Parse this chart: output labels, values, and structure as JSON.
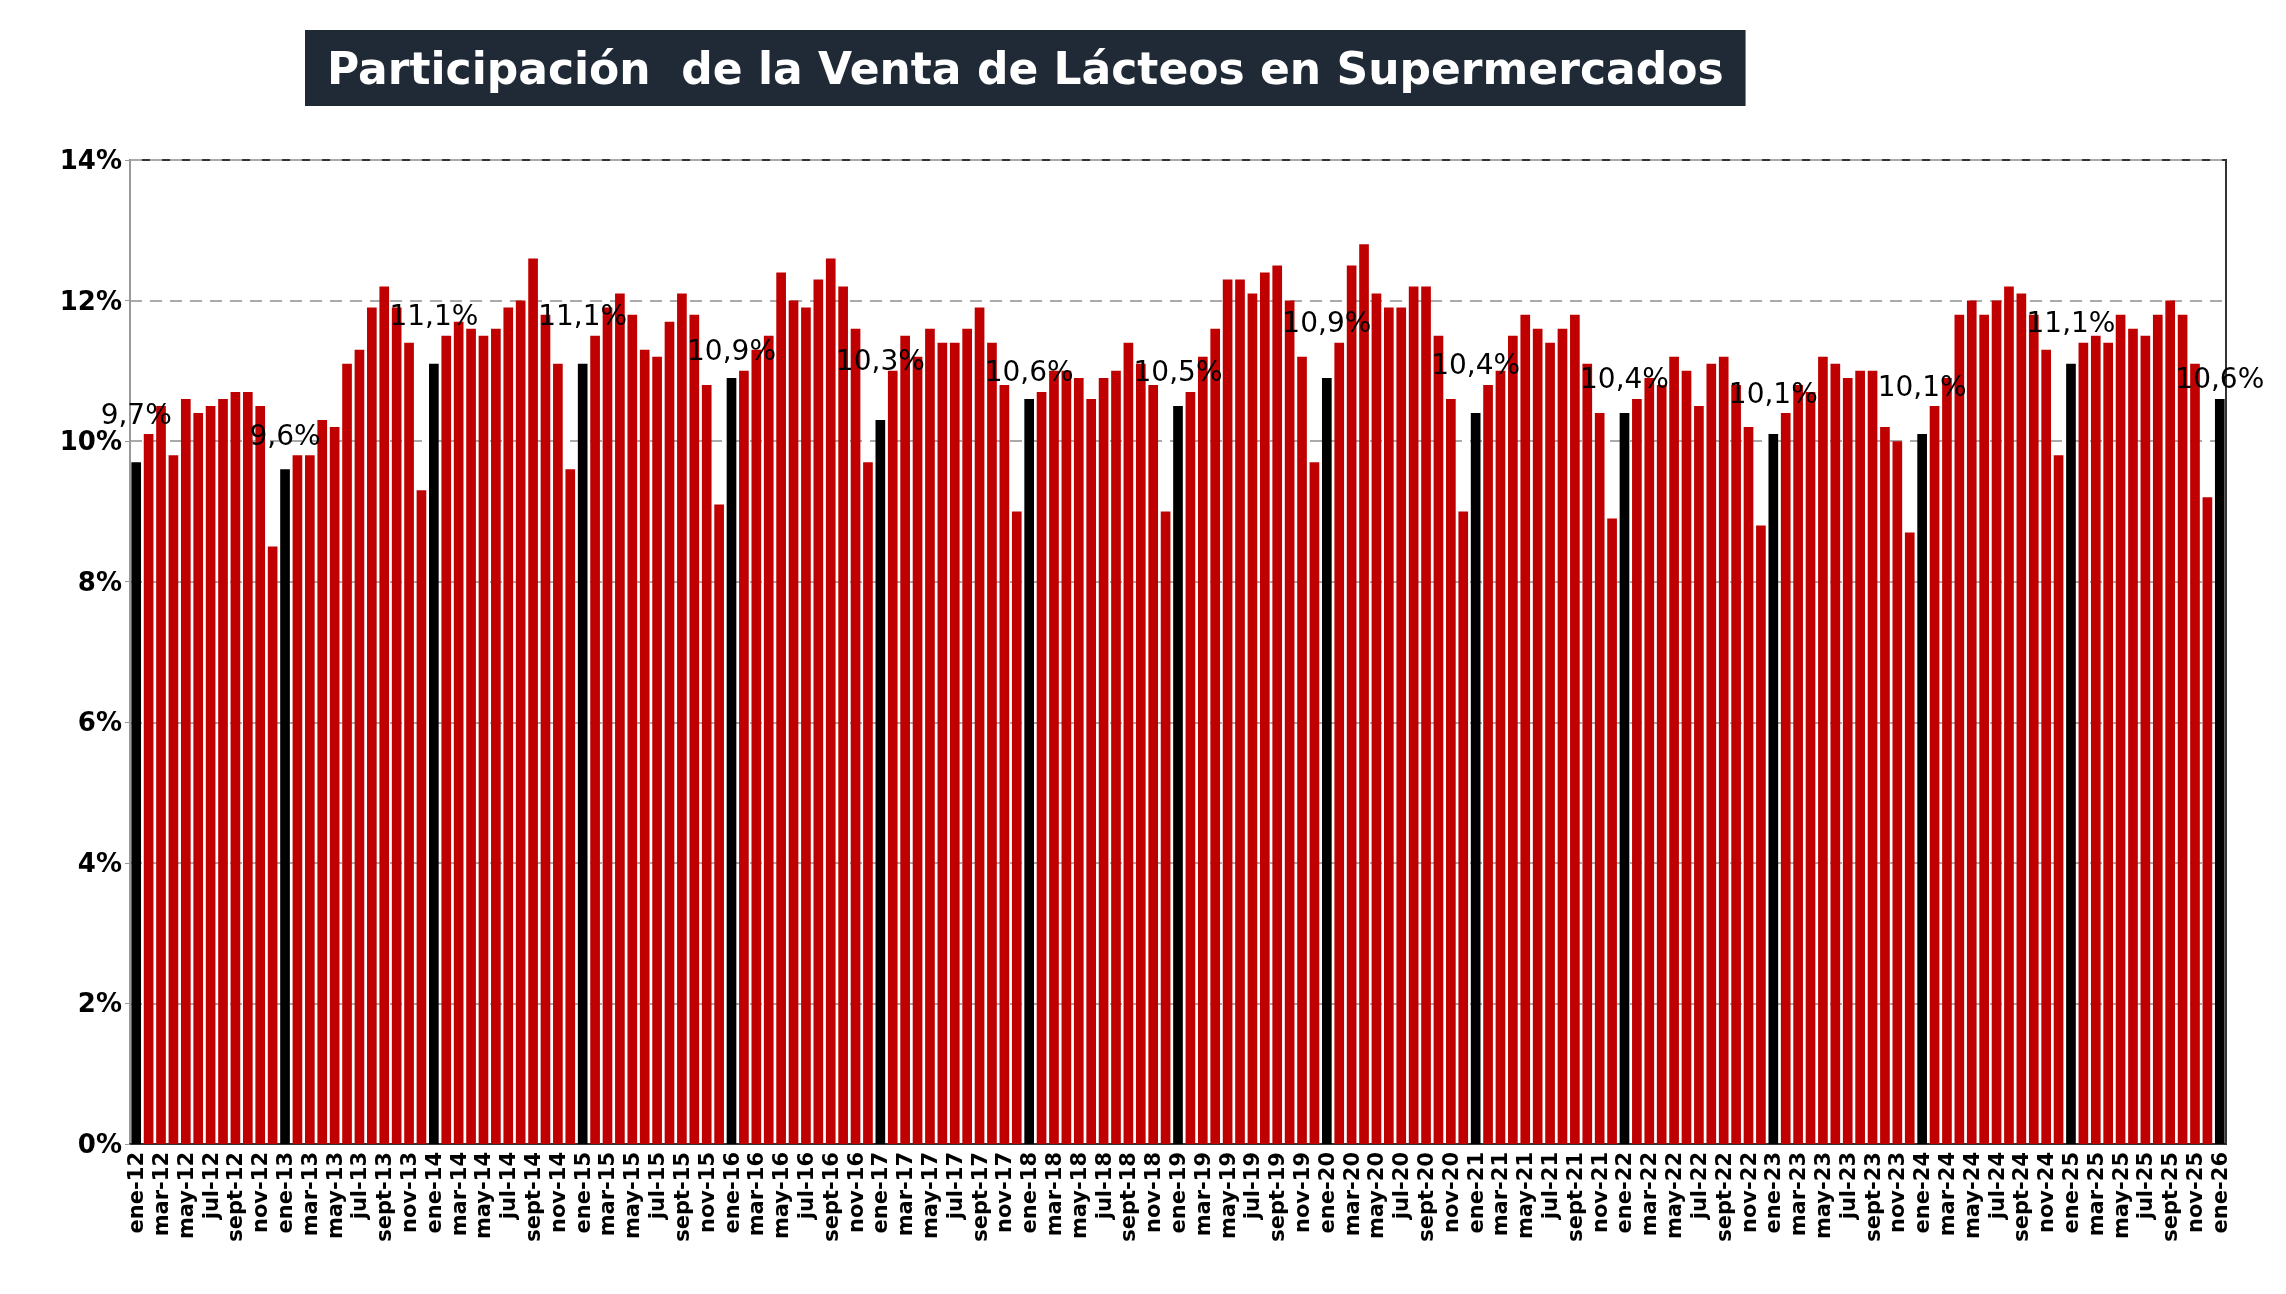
{
  "chart_data": {
    "type": "bar",
    "title": "Participación  de la Venta de Lácteos en Supermercados",
    "categories": [
      "ene-12",
      null,
      "mar-12",
      null,
      "may-12",
      null,
      "jul-12",
      null,
      "sept-12",
      null,
      "nov-12",
      null,
      "ene-13",
      null,
      "mar-13",
      null,
      "may-13",
      null,
      "jul-13",
      null,
      "sept-13",
      null,
      "nov-13",
      null,
      "ene-14",
      null,
      "mar-14",
      null,
      "may-14",
      null,
      "jul-14",
      null,
      "sept-14",
      null,
      "nov-14",
      null,
      "ene-15",
      null,
      "mar-15",
      null,
      "may-15",
      null,
      "jul-15",
      null,
      "sept-15",
      null,
      "nov-15",
      null,
      "ene-16",
      null,
      "mar-16",
      null,
      "may-16",
      null,
      "jul-16",
      null,
      "sept-16",
      null,
      "nov-16",
      null,
      "ene-17",
      null,
      "mar-17",
      null,
      "may-17",
      null,
      "jul-17",
      null,
      "sept-17",
      null,
      "nov-17",
      null,
      "ene-18",
      null,
      "mar-18",
      null,
      "may-18",
      null,
      "jul-18",
      null,
      "sept-18",
      null,
      "nov-18",
      null,
      "ene-19",
      null,
      "mar-19",
      null,
      "may-19",
      null,
      "jul-19",
      null,
      "sept-19",
      null,
      "nov-19",
      null,
      "ene-20",
      null,
      "mar-20",
      null,
      "may-20",
      null,
      "jul-20",
      null,
      "sept-20",
      null,
      "nov-20",
      null,
      "ene-21",
      null,
      "mar-21",
      null,
      "may-21",
      null,
      "jul-21",
      null,
      "sept-21",
      null,
      "nov-21",
      null,
      "ene-22",
      null,
      "mar-22",
      null,
      "may-22",
      null,
      "jul-22",
      null,
      "sept-22",
      null,
      "nov-22",
      null,
      "ene-23",
      null,
      "mar-23",
      null,
      "may-23",
      null,
      "jul-23",
      null,
      "sept-23",
      null,
      "nov-23",
      null,
      "ene-24",
      null,
      "mar-24",
      null,
      "may-24",
      null,
      "jul-24",
      null,
      "sept-24",
      null,
      "nov-24",
      null,
      "ene-25",
      null,
      "mar-25",
      null,
      "may-25",
      null,
      "jul-25",
      null,
      "sept-25",
      null,
      "nov-25",
      null,
      "ene-26"
    ],
    "values": [
      9.7,
      10.1,
      10.5,
      9.8,
      10.6,
      10.4,
      10.5,
      10.6,
      10.7,
      10.7,
      10.5,
      8.5,
      9.6,
      9.8,
      9.8,
      10.3,
      10.2,
      11.1,
      11.3,
      11.9,
      12.2,
      11.9,
      11.4,
      9.3,
      11.1,
      11.5,
      11.7,
      11.6,
      11.5,
      11.6,
      11.9,
      12.0,
      12.6,
      11.8,
      11.1,
      9.6,
      11.1,
      11.5,
      11.9,
      12.1,
      11.8,
      11.3,
      11.2,
      11.7,
      12.1,
      11.8,
      10.8,
      9.1,
      10.9,
      11.0,
      11.3,
      11.5,
      12.4,
      12.0,
      11.9,
      12.3,
      12.6,
      12.2,
      11.6,
      9.7,
      10.3,
      11.0,
      11.5,
      11.2,
      11.6,
      11.4,
      11.4,
      11.6,
      11.9,
      11.4,
      10.8,
      9.0,
      10.6,
      10.7,
      11.0,
      11.0,
      10.9,
      10.6,
      10.9,
      11.0,
      11.4,
      11.1,
      10.8,
      9.0,
      10.5,
      10.7,
      11.2,
      11.6,
      12.3,
      12.3,
      12.1,
      12.4,
      12.5,
      12.0,
      11.2,
      9.7,
      10.9,
      11.4,
      12.5,
      12.8,
      12.1,
      11.9,
      11.9,
      12.2,
      12.2,
      11.5,
      10.6,
      9.0,
      10.4,
      10.8,
      11.0,
      11.5,
      11.8,
      11.6,
      11.4,
      11.6,
      11.8,
      11.1,
      10.4,
      8.9,
      10.4,
      10.6,
      10.9,
      10.8,
      11.2,
      11.0,
      10.5,
      11.1,
      11.2,
      10.8,
      10.2,
      8.8,
      10.1,
      10.4,
      10.8,
      10.7,
      11.2,
      11.1,
      10.9,
      11.0,
      11.0,
      10.2,
      10.0,
      8.7,
      10.1,
      10.5,
      10.9,
      11.8,
      12.0,
      11.8,
      12.0,
      12.2,
      12.1,
      11.8,
      11.3,
      9.8,
      11.1,
      11.4,
      11.5,
      11.4,
      11.8,
      11.6,
      11.5,
      11.8,
      12.0,
      11.8,
      11.1,
      9.2,
      10.6
    ],
    "colors": [
      "#000000",
      "#c00000",
      "#c00000",
      "#c00000",
      "#c00000",
      "#c00000",
      "#c00000",
      "#c00000",
      "#c00000",
      "#c00000",
      "#c00000",
      "#c00000",
      "#000000",
      "#c00000",
      "#c00000",
      "#c00000",
      "#c00000",
      "#c00000",
      "#c00000",
      "#c00000",
      "#c00000",
      "#c00000",
      "#c00000",
      "#c00000",
      "#000000",
      "#c00000",
      "#c00000",
      "#c00000",
      "#c00000",
      "#c00000",
      "#c00000",
      "#c00000",
      "#c00000",
      "#c00000",
      "#c00000",
      "#c00000",
      "#000000",
      "#c00000",
      "#c00000",
      "#c00000",
      "#c00000",
      "#c00000",
      "#c00000",
      "#c00000",
      "#c00000",
      "#c00000",
      "#c00000",
      "#c00000",
      "#000000",
      "#c00000",
      "#c00000",
      "#c00000",
      "#c00000",
      "#c00000",
      "#c00000",
      "#c00000",
      "#c00000",
      "#c00000",
      "#c00000",
      "#c00000",
      "#000000",
      "#c00000",
      "#c00000",
      "#c00000",
      "#c00000",
      "#c00000",
      "#c00000",
      "#c00000",
      "#c00000",
      "#c00000",
      "#c00000",
      "#c00000",
      "#000000",
      "#c00000",
      "#c00000",
      "#c00000",
      "#c00000",
      "#c00000",
      "#c00000",
      "#c00000",
      "#c00000",
      "#c00000",
      "#c00000",
      "#c00000",
      "#000000",
      "#c00000",
      "#c00000",
      "#c00000",
      "#c00000",
      "#c00000",
      "#c00000",
      "#c00000",
      "#c00000",
      "#c00000",
      "#c00000",
      "#c00000",
      "#000000",
      "#c00000",
      "#c00000",
      "#c00000",
      "#c00000",
      "#c00000",
      "#c00000",
      "#c00000",
      "#c00000",
      "#c00000",
      "#c00000",
      "#c00000",
      "#000000",
      "#c00000",
      "#c00000",
      "#c00000",
      "#c00000",
      "#c00000",
      "#c00000",
      "#c00000",
      "#c00000",
      "#c00000",
      "#c00000",
      "#c00000",
      "#000000",
      "#c00000",
      "#c00000",
      "#c00000",
      "#c00000",
      "#c00000",
      "#c00000",
      "#c00000",
      "#c00000",
      "#c00000",
      "#c00000",
      "#c00000",
      "#000000",
      "#c00000",
      "#c00000",
      "#c00000",
      "#c00000",
      "#c00000",
      "#c00000",
      "#c00000",
      "#c00000",
      "#c00000",
      "#c00000",
      "#c00000",
      "#000000",
      "#c00000",
      "#c00000",
      "#c00000",
      "#c00000",
      "#c00000",
      "#c00000",
      "#c00000",
      "#c00000",
      "#c00000",
      "#c00000",
      "#c00000",
      "#000000",
      "#c00000",
      "#c00000",
      "#c00000",
      "#c00000",
      "#c00000",
      "#c00000",
      "#c00000",
      "#c00000",
      "#c00000",
      "#c00000",
      "#c00000",
      "#000000"
    ],
    "value_labels": [
      "9,7%",
      null,
      null,
      null,
      null,
      null,
      null,
      null,
      null,
      null,
      null,
      null,
      "9,6%",
      null,
      null,
      null,
      null,
      null,
      null,
      null,
      null,
      null,
      null,
      null,
      "11,1%",
      null,
      null,
      null,
      null,
      null,
      null,
      null,
      null,
      null,
      null,
      null,
      "11,1%",
      null,
      null,
      null,
      null,
      null,
      null,
      null,
      null,
      null,
      null,
      null,
      "10,9%",
      null,
      null,
      null,
      null,
      null,
      null,
      null,
      null,
      null,
      null,
      null,
      "10,3%",
      null,
      null,
      null,
      null,
      null,
      null,
      null,
      null,
      null,
      null,
      null,
      "10,6%",
      null,
      null,
      null,
      null,
      null,
      null,
      null,
      null,
      null,
      null,
      null,
      "10,5%",
      null,
      null,
      null,
      null,
      null,
      null,
      null,
      null,
      null,
      null,
      null,
      "10,9%",
      null,
      null,
      null,
      null,
      null,
      null,
      null,
      null,
      null,
      null,
      null,
      "10,4%",
      null,
      null,
      null,
      null,
      null,
      null,
      null,
      null,
      null,
      null,
      null,
      "10,4%",
      null,
      null,
      null,
      null,
      null,
      null,
      null,
      null,
      null,
      null,
      null,
      "10,1%",
      null,
      null,
      null,
      null,
      null,
      null,
      null,
      null,
      null,
      null,
      null,
      "10,1%",
      null,
      null,
      null,
      null,
      null,
      null,
      null,
      null,
      null,
      null,
      null,
      "11,1%",
      null,
      null,
      null,
      null,
      null,
      null,
      null,
      null,
      null,
      null,
      null,
      "10,6%"
    ],
    "ylim": [
      0,
      14
    ],
    "yticks": [
      {
        "value": 0,
        "label": "0%"
      },
      {
        "value": 2,
        "label": "2%"
      },
      {
        "value": 4,
        "label": "4%"
      },
      {
        "value": 6,
        "label": "6%"
      },
      {
        "value": 8,
        "label": "8%"
      },
      {
        "value": 10,
        "label": "10%"
      },
      {
        "value": 12,
        "label": "12%"
      },
      {
        "value": 14,
        "label": "14%"
      }
    ],
    "grid": "y"
  }
}
